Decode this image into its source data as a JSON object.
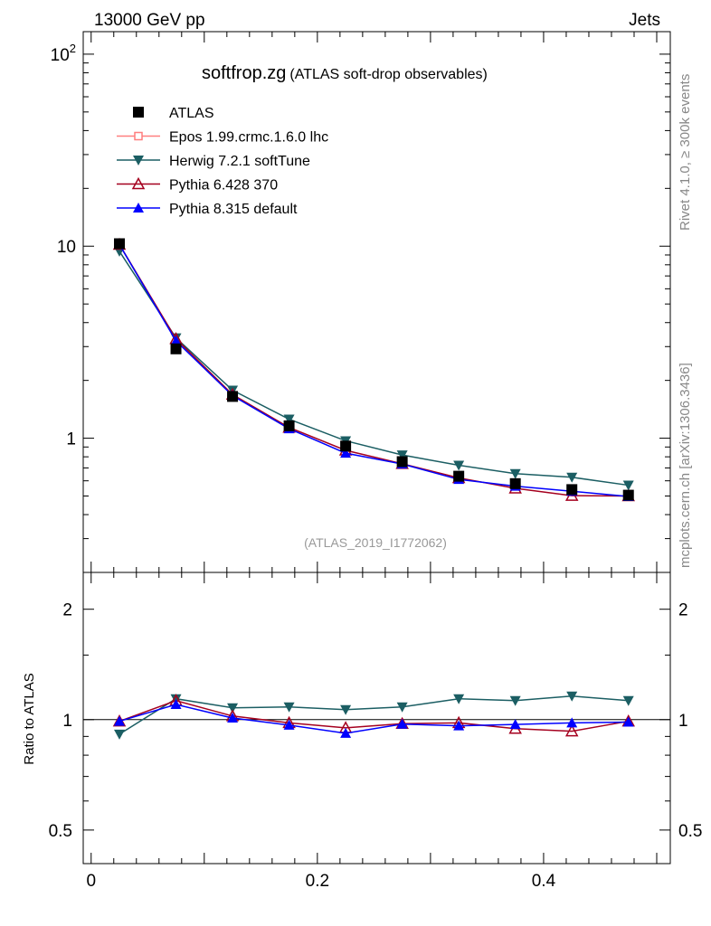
{
  "header": {
    "left": "13000 GeV pp",
    "right": "Jets"
  },
  "side_text": {
    "rivet": "Rivet 4.1.0, ≥ 300k events",
    "mcplots": "mcplots.cern.ch [arXiv:1306.3436]"
  },
  "chart_data": {
    "type": "line",
    "title": "softfrop.zg",
    "subtitle": "(ATLAS soft-drop observables)",
    "analysis_label": "(ATLAS_2019_I1772062)",
    "x": [
      0.025,
      0.075,
      0.125,
      0.175,
      0.225,
      0.275,
      0.325,
      0.375,
      0.425,
      0.475
    ],
    "xlim": [
      -0.007,
      0.512
    ],
    "xticks": [
      "0",
      "0.2",
      "0.4"
    ],
    "main": {
      "yscale": "log",
      "ylim": [
        0.2,
        131
      ],
      "yticks": [
        "1",
        "10",
        "10^2"
      ]
    },
    "ratio": {
      "yscale": "log2",
      "ylabel": "Ratio to ATLAS",
      "ylim": [
        0.405,
        2.52
      ],
      "yticks": [
        "0.5",
        "1",
        "2"
      ]
    },
    "data": {
      "name": "ATLAS",
      "color": "#000000",
      "values": [
        10.3,
        2.92,
        1.65,
        1.16,
        0.91,
        0.755,
        0.634,
        0.58,
        0.54,
        0.505
      ]
    },
    "series": [
      {
        "name": "Epos 1.99.crmc.1.6.0 lhc",
        "color": "#ff7f7f",
        "marker": "open-square",
        "ratio": []
      },
      {
        "name": "Herwig 7.2.1 softTune",
        "color": "#1b5e63",
        "marker": "down-triangle",
        "ratio": [
          0.913,
          1.14,
          1.077,
          1.083,
          1.065,
          1.083,
          1.14,
          1.127,
          1.159,
          1.127
        ]
      },
      {
        "name": "Pythia 6.428 370",
        "color": "#a5001f",
        "marker": "open-triangle",
        "ratio": [
          0.99,
          1.127,
          1.023,
          0.98,
          0.95,
          0.975,
          0.98,
          0.945,
          0.93,
          0.99
        ]
      },
      {
        "name": "Pythia 8.315 default",
        "color": "#0000ff",
        "marker": "triangle",
        "ratio": [
          0.99,
          1.1,
          1.01,
          0.966,
          0.918,
          0.972,
          0.962,
          0.97,
          0.98,
          0.985
        ]
      }
    ]
  }
}
